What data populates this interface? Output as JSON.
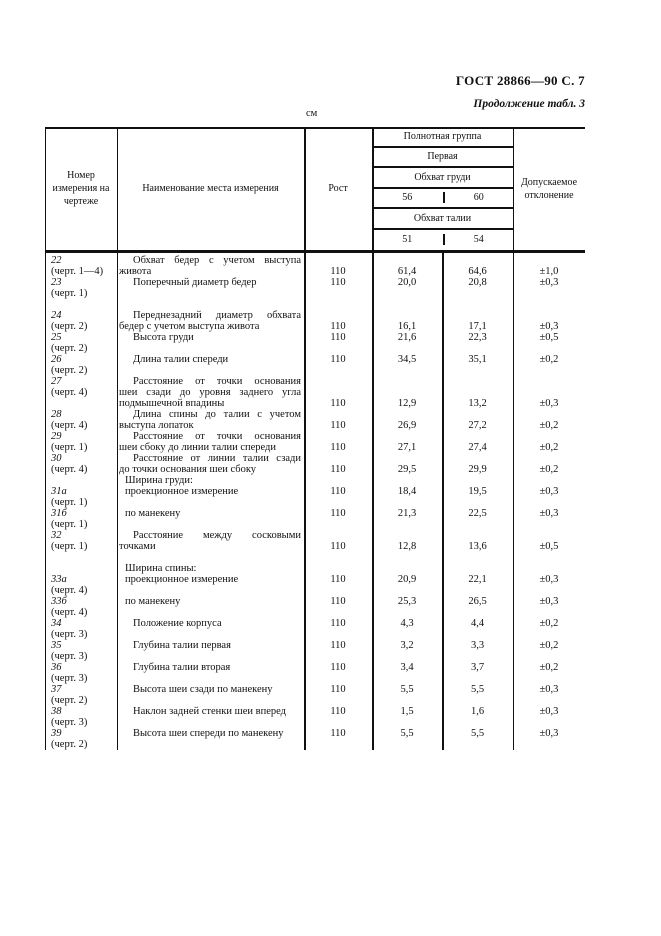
{
  "page": {
    "doc_ref": "ГОСТ 28866—90 С. 7",
    "continuation": "Продолжение табл. 3",
    "units": "см"
  },
  "table": {
    "header": {
      "number_col": "Номер измерения на чертеже",
      "name_col": "Наименование места измерения",
      "height_col": "Рост",
      "fullness_group": "Полнотная группа",
      "fullness_value": "Первая",
      "chest_girth": "Обхват груди",
      "chest_56": "56",
      "chest_60": "60",
      "waist_girth": "Обхват талии",
      "waist_51": "51",
      "waist_54": "54",
      "deviation_col": "Допускаемое отклонение"
    },
    "body_lines": [
      {
        "num": "22",
        "name": "Обхват бедер с учетом выступа",
        "ind": "p",
        "j": true
      },
      {
        "num": "(черт. 1—4)",
        "name": "живота",
        "rost": "110",
        "v56": "61,4",
        "v60": "64,6",
        "dev": "±1,0"
      },
      {
        "num": "23",
        "name": "Поперечный диаметр бедер",
        "ind": "p",
        "rost": "110",
        "v56": "20,0",
        "v60": "20,8",
        "dev": "±0,3"
      },
      {
        "num": "(черт. 1)"
      },
      {},
      {
        "num": "24",
        "name": "Переднезадний диаметр обхвата",
        "ind": "p",
        "j": true
      },
      {
        "num": "(черт. 2)",
        "name": "бедер с учетом выступа живота",
        "rost": "110",
        "v56": "16,1",
        "v60": "17,1",
        "dev": "±0,3"
      },
      {
        "num": "25",
        "name": "Высота груди",
        "ind": "p",
        "rost": "110",
        "v56": "21,6",
        "v60": "22,3",
        "dev": "±0,5"
      },
      {
        "num": "(черт. 2)"
      },
      {
        "num": "26",
        "name": "Длина талии спереди",
        "ind": "p",
        "rost": "110",
        "v56": "34,5",
        "v60": "35,1",
        "dev": "±0,2"
      },
      {
        "num": "(черт. 2)"
      },
      {
        "num": "27",
        "name": "Расстояние от точки основания",
        "ind": "p",
        "j": true
      },
      {
        "num": "(черт. 4)",
        "name": "шеи сзади до уровня заднего угла",
        "j": true
      },
      {
        "name": "подмышечной впадины",
        "rost": "110",
        "v56": "12,9",
        "v60": "13,2",
        "dev": "±0,3"
      },
      {
        "num": "28",
        "name": "Длина спины до талии с учетом",
        "ind": "p",
        "j": true
      },
      {
        "num": "(черт. 4)",
        "name": "выступа лопаток",
        "rost": "110",
        "v56": "26,9",
        "v60": "27,2",
        "dev": "±0,2"
      },
      {
        "num": "29",
        "name": "Расстояние от точки основания",
        "ind": "p",
        "j": true
      },
      {
        "num": "(черт. 1)",
        "name": "шеи сбоку до линии талии спереди",
        "rost": "110",
        "v56": "27,1",
        "v60": "27,4",
        "dev": "±0,2"
      },
      {
        "num": "30",
        "name": "Расстояние от линии талии сзади",
        "ind": "p",
        "j": true
      },
      {
        "num": "(черт. 4)",
        "name": "до точки основания шеи сбоку",
        "rost": "110",
        "v56": "29,5",
        "v60": "29,9",
        "dev": "±0,2"
      },
      {
        "name": "Ширина груди:",
        "ind": "s"
      },
      {
        "num": "31а",
        "name": "проекционное измерение",
        "ind": "s",
        "rost": "110",
        "v56": "18,4",
        "v60": "19,5",
        "dev": "±0,3"
      },
      {
        "num": "(черт. 1)"
      },
      {
        "num": "31б",
        "name": "по манекену",
        "ind": "s",
        "rost": "110",
        "v56": "21,3",
        "v60": "22,5",
        "dev": "±0,3"
      },
      {
        "num": "(черт. 1)"
      },
      {
        "num": "32",
        "name": "Расстояние между сосковыми",
        "ind": "p",
        "j": true
      },
      {
        "num": "(черт. 1)",
        "name": "точками",
        "rost": "110",
        "v56": "12,8",
        "v60": "13,6",
        "dev": "±0,5"
      },
      {},
      {
        "name": "Ширина спины:",
        "ind": "s"
      },
      {
        "num": "33а",
        "name": "проекционное измерение",
        "ind": "s",
        "rost": "110",
        "v56": "20,9",
        "v60": "22,1",
        "dev": "±0,3"
      },
      {
        "num": "(черт. 4)"
      },
      {
        "num": "33б",
        "name": "по манекену",
        "ind": "s",
        "rost": "110",
        "v56": "25,3",
        "v60": "26,5",
        "dev": "±0,3"
      },
      {
        "num": "(черт. 4)"
      },
      {
        "num": "34",
        "name": "Положение корпуса",
        "ind": "p",
        "rost": "110",
        "v56": "4,3",
        "v60": "4,4",
        "dev": "±0,2"
      },
      {
        "num": "(черт. 3)"
      },
      {
        "num": "35",
        "name": "Глубина талии первая",
        "ind": "p",
        "rost": "110",
        "v56": "3,2",
        "v60": "3,3",
        "dev": "±0,2"
      },
      {
        "num": "(черт. 3)"
      },
      {
        "num": "36",
        "name": "Глубина талии вторая",
        "ind": "p",
        "rost": "110",
        "v56": "3,4",
        "v60": "3,7",
        "dev": "±0,2"
      },
      {
        "num": "(черт. 3)"
      },
      {
        "num": "37",
        "name": "Высота шеи сзади по манекену",
        "ind": "p",
        "rost": "110",
        "v56": "5,5",
        "v60": "5,5",
        "dev": "±0,3"
      },
      {
        "num": "(черт. 2)"
      },
      {
        "num": "38",
        "name": "Наклон задней стенки шеи вперед",
        "ind": "p",
        "rost": "110",
        "v56": "1,5",
        "v60": "1,6",
        "dev": "±0,3"
      },
      {
        "num": "(черт. 3)"
      },
      {
        "num": "39",
        "name": "Высота шеи спереди по манекену",
        "ind": "p",
        "rost": "110",
        "v56": "5,5",
        "v60": "5,5",
        "dev": "±0,3"
      },
      {
        "num": "(черт. 2)"
      }
    ]
  }
}
